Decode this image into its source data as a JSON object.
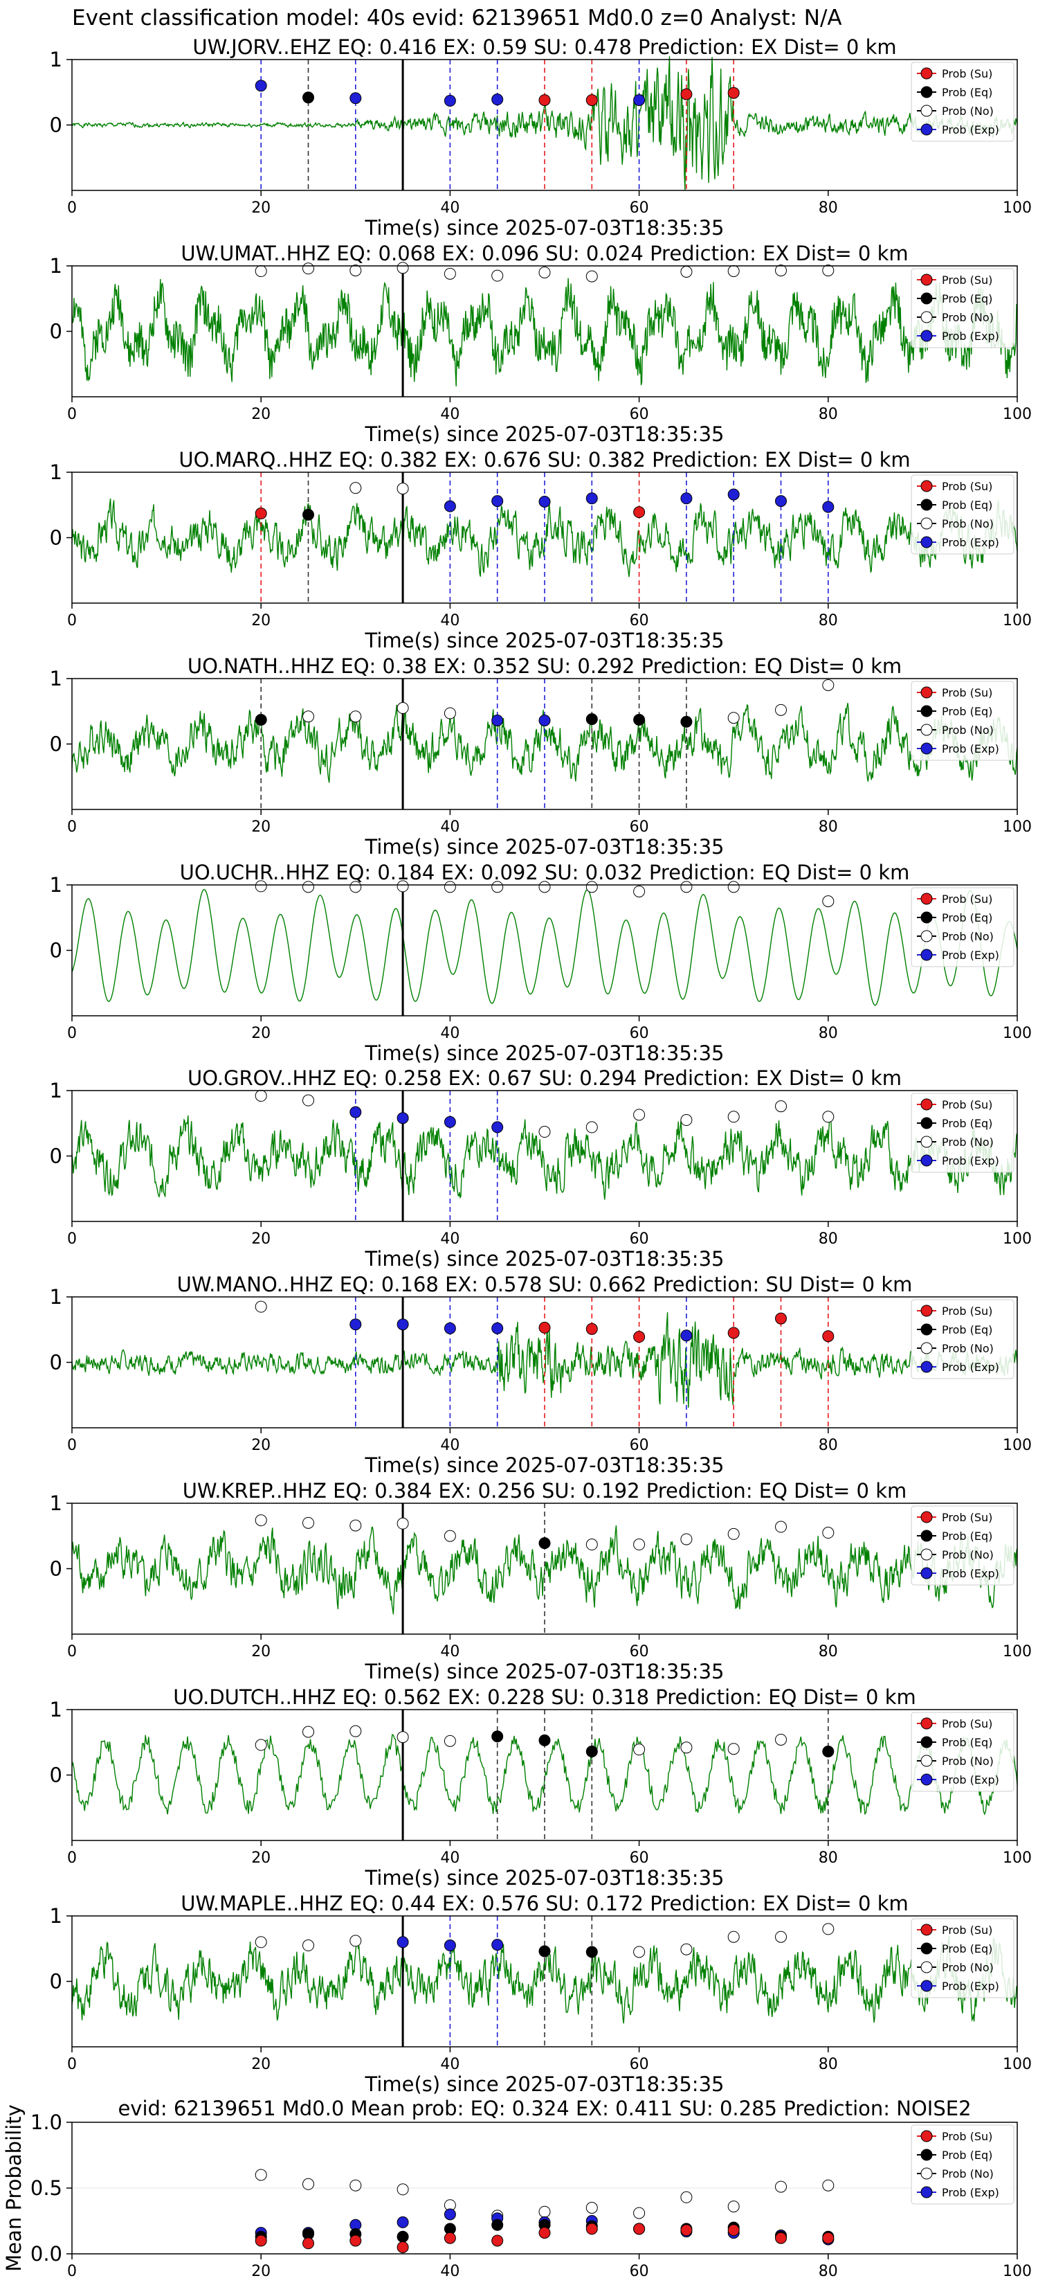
{
  "main_title": "Event classification model: 40s evid: 62139651 Md0.0 z=0 Analyst: N/A",
  "legend_labels": [
    "Prob (Su)",
    "Prob (Eq)",
    "Prob (No)",
    "Prob (Exp)"
  ],
  "colors": {
    "su": "#e41a1c",
    "eq": "#000000",
    "no": "#ffffff",
    "exp": "#1f1fd6",
    "waveform": "#008000",
    "pick": "#000000"
  },
  "chart_data": [
    {
      "type": "line",
      "station": "UW.JORV..EHZ",
      "title": "UW.JORV..EHZ   EQ: 0.416  EX: 0.59  SU: 0.478   Prediction: EX    Dist= 0 km",
      "xlabel": "Time(s) since 2025-07-03T18:35:35",
      "xlim": [
        0,
        100
      ],
      "ylim": [
        -1,
        1
      ],
      "xticks": [
        "0",
        "20",
        "40",
        "60",
        "80",
        "100"
      ],
      "yticks": [
        "1",
        "0"
      ],
      "pick_time": 35,
      "waveform": {
        "style": "noisy-burst",
        "amplitude": 0.65,
        "seed": 1
      },
      "points": [
        {
          "t": 20,
          "p": 0.6,
          "cls": "exp"
        },
        {
          "t": 25,
          "p": 0.42,
          "cls": "eq"
        },
        {
          "t": 30,
          "p": 0.41,
          "cls": "exp"
        },
        {
          "t": 40,
          "p": 0.37,
          "cls": "exp"
        },
        {
          "t": 45,
          "p": 0.39,
          "cls": "exp"
        },
        {
          "t": 50,
          "p": 0.38,
          "cls": "su"
        },
        {
          "t": 55,
          "p": 0.38,
          "cls": "su"
        },
        {
          "t": 60,
          "p": 0.38,
          "cls": "exp"
        },
        {
          "t": 65,
          "p": 0.47,
          "cls": "su"
        },
        {
          "t": 70,
          "p": 0.49,
          "cls": "su"
        }
      ]
    },
    {
      "type": "line",
      "station": "UW.UMAT..HHZ",
      "title": "UW.UMAT..HHZ   EQ: 0.068  EX: 0.096  SU: 0.024   Prediction: EX    Dist= 0 km",
      "xlabel": "Time(s) since 2025-07-03T18:35:35",
      "xlim": [
        0,
        100
      ],
      "ylim": [
        -1,
        1
      ],
      "xticks": [
        "0",
        "20",
        "40",
        "60",
        "80",
        "100"
      ],
      "yticks": [
        "1",
        "0"
      ],
      "pick_time": 35,
      "waveform": {
        "style": "oscillatory",
        "amplitude": 0.6,
        "seed": 2
      },
      "points": [
        {
          "t": 20,
          "p": 0.92,
          "cls": "no"
        },
        {
          "t": 25,
          "p": 0.96,
          "cls": "no"
        },
        {
          "t": 30,
          "p": 0.93,
          "cls": "no"
        },
        {
          "t": 35,
          "p": 0.97,
          "cls": "no"
        },
        {
          "t": 40,
          "p": 0.88,
          "cls": "no"
        },
        {
          "t": 45,
          "p": 0.85,
          "cls": "no"
        },
        {
          "t": 50,
          "p": 0.9,
          "cls": "no"
        },
        {
          "t": 55,
          "p": 0.84,
          "cls": "no"
        },
        {
          "t": 65,
          "p": 0.91,
          "cls": "no"
        },
        {
          "t": 70,
          "p": 0.92,
          "cls": "no"
        },
        {
          "t": 75,
          "p": 0.93,
          "cls": "no"
        },
        {
          "t": 80,
          "p": 0.93,
          "cls": "no"
        }
      ]
    },
    {
      "type": "line",
      "station": "UO.MARQ..HHZ",
      "title": "UO.MARQ..HHZ   EQ: 0.382  EX: 0.676  SU: 0.382   Prediction: EX    Dist= 0 km",
      "xlabel": "Time(s) since 2025-07-03T18:35:35",
      "xlim": [
        0,
        100
      ],
      "ylim": [
        -1,
        1
      ],
      "xticks": [
        "0",
        "20",
        "40",
        "60",
        "80",
        "100"
      ],
      "yticks": [
        "1",
        "0"
      ],
      "pick_time": 35,
      "waveform": {
        "style": "noisy",
        "amplitude": 0.55,
        "seed": 3
      },
      "points": [
        {
          "t": 20,
          "p": 0.37,
          "cls": "su"
        },
        {
          "t": 25,
          "p": 0.35,
          "cls": "eq"
        },
        {
          "t": 30,
          "p": 0.76,
          "cls": "no"
        },
        {
          "t": 35,
          "p": 0.75,
          "cls": "no"
        },
        {
          "t": 40,
          "p": 0.48,
          "cls": "exp"
        },
        {
          "t": 45,
          "p": 0.56,
          "cls": "exp"
        },
        {
          "t": 50,
          "p": 0.55,
          "cls": "exp"
        },
        {
          "t": 55,
          "p": 0.6,
          "cls": "exp"
        },
        {
          "t": 60,
          "p": 0.39,
          "cls": "su"
        },
        {
          "t": 65,
          "p": 0.6,
          "cls": "exp"
        },
        {
          "t": 70,
          "p": 0.66,
          "cls": "exp"
        },
        {
          "t": 75,
          "p": 0.56,
          "cls": "exp"
        },
        {
          "t": 80,
          "p": 0.47,
          "cls": "exp"
        }
      ]
    },
    {
      "type": "line",
      "station": "UO.NATH..HHZ",
      "title": "UO.NATH..HHZ   EQ: 0.38  EX: 0.352  SU: 0.292   Prediction: EQ    Dist= 0 km",
      "xlabel": "Time(s) since 2025-07-03T18:35:35",
      "xlim": [
        0,
        100
      ],
      "ylim": [
        -1,
        1
      ],
      "xticks": [
        "0",
        "20",
        "40",
        "60",
        "80",
        "100"
      ],
      "yticks": [
        "1",
        "0"
      ],
      "pick_time": 35,
      "waveform": {
        "style": "noisy",
        "amplitude": 0.55,
        "seed": 4
      },
      "points": [
        {
          "t": 20,
          "p": 0.37,
          "cls": "eq"
        },
        {
          "t": 25,
          "p": 0.42,
          "cls": "no"
        },
        {
          "t": 30,
          "p": 0.42,
          "cls": "no"
        },
        {
          "t": 35,
          "p": 0.55,
          "cls": "no"
        },
        {
          "t": 40,
          "p": 0.47,
          "cls": "no"
        },
        {
          "t": 45,
          "p": 0.36,
          "cls": "exp"
        },
        {
          "t": 50,
          "p": 0.36,
          "cls": "exp"
        },
        {
          "t": 55,
          "p": 0.38,
          "cls": "eq"
        },
        {
          "t": 60,
          "p": 0.37,
          "cls": "eq"
        },
        {
          "t": 65,
          "p": 0.34,
          "cls": "eq"
        },
        {
          "t": 70,
          "p": 0.4,
          "cls": "no"
        },
        {
          "t": 75,
          "p": 0.52,
          "cls": "no"
        },
        {
          "t": 80,
          "p": 0.9,
          "cls": "no"
        }
      ]
    },
    {
      "type": "line",
      "station": "UO.UCHR..HHZ",
      "title": "UO.UCHR..HHZ   EQ: 0.184  EX: 0.092  SU: 0.032   Prediction: EQ    Dist= 0 km",
      "xlabel": "Time(s) since 2025-07-03T18:35:35",
      "xlim": [
        0,
        100
      ],
      "ylim": [
        -1,
        1
      ],
      "xticks": [
        "0",
        "20",
        "40",
        "60",
        "80",
        "100"
      ],
      "yticks": [
        "1",
        "0"
      ],
      "pick_time": 35,
      "waveform": {
        "style": "smooth",
        "amplitude": 0.7,
        "seed": 5
      },
      "points": [
        {
          "t": 20,
          "p": 0.98,
          "cls": "no"
        },
        {
          "t": 25,
          "p": 0.97,
          "cls": "no"
        },
        {
          "t": 30,
          "p": 0.97,
          "cls": "no"
        },
        {
          "t": 35,
          "p": 0.98,
          "cls": "no"
        },
        {
          "t": 40,
          "p": 0.97,
          "cls": "no"
        },
        {
          "t": 45,
          "p": 0.97,
          "cls": "no"
        },
        {
          "t": 50,
          "p": 0.97,
          "cls": "no"
        },
        {
          "t": 55,
          "p": 0.97,
          "cls": "no"
        },
        {
          "t": 60,
          "p": 0.9,
          "cls": "no"
        },
        {
          "t": 65,
          "p": 0.97,
          "cls": "no"
        },
        {
          "t": 70,
          "p": 0.97,
          "cls": "no"
        },
        {
          "t": 80,
          "p": 0.75,
          "cls": "no"
        }
      ]
    },
    {
      "type": "line",
      "station": "UO.GROV..HHZ",
      "title": "UO.GROV..HHZ   EQ: 0.258  EX: 0.67  SU: 0.294   Prediction: EX    Dist= 0 km",
      "xlabel": "Time(s) since 2025-07-03T18:35:35",
      "xlim": [
        0,
        100
      ],
      "ylim": [
        -1,
        1
      ],
      "xticks": [
        "0",
        "20",
        "40",
        "60",
        "80",
        "100"
      ],
      "yticks": [
        "1",
        "0"
      ],
      "pick_time": 35,
      "waveform": {
        "style": "noisy",
        "amplitude": 0.6,
        "seed": 6
      },
      "points": [
        {
          "t": 20,
          "p": 0.92,
          "cls": "no"
        },
        {
          "t": 25,
          "p": 0.85,
          "cls": "no"
        },
        {
          "t": 30,
          "p": 0.67,
          "cls": "exp"
        },
        {
          "t": 35,
          "p": 0.58,
          "cls": "exp"
        },
        {
          "t": 40,
          "p": 0.52,
          "cls": "exp"
        },
        {
          "t": 45,
          "p": 0.44,
          "cls": "exp"
        },
        {
          "t": 50,
          "p": 0.37,
          "cls": "no"
        },
        {
          "t": 55,
          "p": 0.44,
          "cls": "no"
        },
        {
          "t": 60,
          "p": 0.63,
          "cls": "no"
        },
        {
          "t": 65,
          "p": 0.55,
          "cls": "no"
        },
        {
          "t": 70,
          "p": 0.6,
          "cls": "no"
        },
        {
          "t": 75,
          "p": 0.76,
          "cls": "no"
        },
        {
          "t": 80,
          "p": 0.6,
          "cls": "no"
        }
      ]
    },
    {
      "type": "line",
      "station": "UW.MANO..HHZ",
      "title": "UW.MANO..HHZ   EQ: 0.168  EX: 0.578  SU: 0.662   Prediction: SU    Dist= 0 km",
      "xlabel": "Time(s) since 2025-07-03T18:35:35",
      "xlim": [
        0,
        100
      ],
      "ylim": [
        -1,
        1
      ],
      "xticks": [
        "0",
        "20",
        "40",
        "60",
        "80",
        "100"
      ],
      "yticks": [
        "1",
        "0"
      ],
      "pick_time": 35,
      "waveform": {
        "style": "noisy-burst-late",
        "amplitude": 0.55,
        "seed": 7
      },
      "points": [
        {
          "t": 20,
          "p": 0.85,
          "cls": "no"
        },
        {
          "t": 30,
          "p": 0.58,
          "cls": "exp"
        },
        {
          "t": 35,
          "p": 0.58,
          "cls": "exp"
        },
        {
          "t": 40,
          "p": 0.52,
          "cls": "exp"
        },
        {
          "t": 45,
          "p": 0.52,
          "cls": "exp"
        },
        {
          "t": 50,
          "p": 0.53,
          "cls": "su"
        },
        {
          "t": 55,
          "p": 0.51,
          "cls": "su"
        },
        {
          "t": 60,
          "p": 0.39,
          "cls": "su"
        },
        {
          "t": 65,
          "p": 0.41,
          "cls": "exp"
        },
        {
          "t": 70,
          "p": 0.45,
          "cls": "su"
        },
        {
          "t": 75,
          "p": 0.67,
          "cls": "su"
        },
        {
          "t": 80,
          "p": 0.4,
          "cls": "su"
        }
      ]
    },
    {
      "type": "line",
      "station": "UW.KREP..HHZ",
      "title": "UW.KREP..HHZ   EQ: 0.384  EX: 0.256  SU: 0.192   Prediction: EQ    Dist= 0 km",
      "xlabel": "Time(s) since 2025-07-03T18:35:35",
      "xlim": [
        0,
        100
      ],
      "ylim": [
        -1,
        1
      ],
      "xticks": [
        "0",
        "20",
        "40",
        "60",
        "80",
        "100"
      ],
      "yticks": [
        "1",
        "0"
      ],
      "pick_time": 35,
      "waveform": {
        "style": "noisy",
        "amplitude": 0.6,
        "seed": 8
      },
      "points": [
        {
          "t": 20,
          "p": 0.74,
          "cls": "no"
        },
        {
          "t": 25,
          "p": 0.7,
          "cls": "no"
        },
        {
          "t": 30,
          "p": 0.66,
          "cls": "no"
        },
        {
          "t": 35,
          "p": 0.69,
          "cls": "no"
        },
        {
          "t": 40,
          "p": 0.5,
          "cls": "no"
        },
        {
          "t": 50,
          "p": 0.39,
          "cls": "eq"
        },
        {
          "t": 55,
          "p": 0.37,
          "cls": "no"
        },
        {
          "t": 60,
          "p": 0.37,
          "cls": "no"
        },
        {
          "t": 65,
          "p": 0.45,
          "cls": "no"
        },
        {
          "t": 70,
          "p": 0.53,
          "cls": "no"
        },
        {
          "t": 75,
          "p": 0.64,
          "cls": "no"
        },
        {
          "t": 80,
          "p": 0.55,
          "cls": "no"
        }
      ]
    },
    {
      "type": "line",
      "station": "UO.DUTCH..HHZ",
      "title": "UO.DUTCH..HHZ   EQ: 0.562  EX: 0.228  SU: 0.318   Prediction: EQ    Dist= 0 km",
      "xlabel": "Time(s) since 2025-07-03T18:35:35",
      "xlim": [
        0,
        100
      ],
      "ylim": [
        -1,
        1
      ],
      "xticks": [
        "0",
        "20",
        "40",
        "60",
        "80",
        "100"
      ],
      "yticks": [
        "1",
        "0"
      ],
      "pick_time": 35,
      "waveform": {
        "style": "smooth-noisy",
        "amplitude": 0.6,
        "seed": 9
      },
      "points": [
        {
          "t": 20,
          "p": 0.46,
          "cls": "no"
        },
        {
          "t": 25,
          "p": 0.66,
          "cls": "no"
        },
        {
          "t": 30,
          "p": 0.67,
          "cls": "no"
        },
        {
          "t": 35,
          "p": 0.58,
          "cls": "no"
        },
        {
          "t": 40,
          "p": 0.52,
          "cls": "no"
        },
        {
          "t": 45,
          "p": 0.59,
          "cls": "eq"
        },
        {
          "t": 50,
          "p": 0.53,
          "cls": "eq"
        },
        {
          "t": 55,
          "p": 0.36,
          "cls": "eq"
        },
        {
          "t": 60,
          "p": 0.39,
          "cls": "no"
        },
        {
          "t": 65,
          "p": 0.42,
          "cls": "no"
        },
        {
          "t": 70,
          "p": 0.4,
          "cls": "no"
        },
        {
          "t": 75,
          "p": 0.54,
          "cls": "no"
        },
        {
          "t": 80,
          "p": 0.36,
          "cls": "eq"
        }
      ]
    },
    {
      "type": "line",
      "station": "UW.MAPLE..HHZ",
      "title": "UW.MAPLE..HHZ   EQ: 0.44  EX: 0.576  SU: 0.172   Prediction: EX    Dist= 0 km",
      "xlabel": "Time(s) since 2025-07-03T18:35:35",
      "xlim": [
        0,
        100
      ],
      "ylim": [
        -1,
        1
      ],
      "xticks": [
        "0",
        "20",
        "40",
        "60",
        "80",
        "100"
      ],
      "yticks": [
        "1",
        "0"
      ],
      "pick_time": 35,
      "waveform": {
        "style": "noisy",
        "amplitude": 0.62,
        "seed": 10
      },
      "points": [
        {
          "t": 20,
          "p": 0.6,
          "cls": "no"
        },
        {
          "t": 25,
          "p": 0.55,
          "cls": "no"
        },
        {
          "t": 30,
          "p": 0.62,
          "cls": "no"
        },
        {
          "t": 35,
          "p": 0.6,
          "cls": "exp"
        },
        {
          "t": 40,
          "p": 0.55,
          "cls": "exp"
        },
        {
          "t": 45,
          "p": 0.56,
          "cls": "exp"
        },
        {
          "t": 50,
          "p": 0.46,
          "cls": "eq"
        },
        {
          "t": 55,
          "p": 0.45,
          "cls": "eq"
        },
        {
          "t": 60,
          "p": 0.45,
          "cls": "no"
        },
        {
          "t": 65,
          "p": 0.49,
          "cls": "no"
        },
        {
          "t": 70,
          "p": 0.68,
          "cls": "no"
        },
        {
          "t": 75,
          "p": 0.68,
          "cls": "no"
        },
        {
          "t": 80,
          "p": 0.8,
          "cls": "no"
        }
      ]
    },
    {
      "type": "scatter",
      "station": "summary",
      "title": "evid: 62139651  Md0.0   Mean prob:   EQ: 0.324  EX: 0.411  SU: 0.285   Prediction: NOISE2",
      "xlabel": "",
      "ylabel": "Mean Probability",
      "xlim": [
        0,
        100
      ],
      "ylim": [
        0,
        1
      ],
      "xticks": [
        "0",
        "20",
        "40",
        "60",
        "80",
        "100"
      ],
      "yticks": [
        "1.0",
        "0.5",
        "0.0"
      ],
      "x": [
        20,
        25,
        30,
        35,
        40,
        45,
        50,
        55,
        60,
        65,
        70,
        75,
        80
      ],
      "series": [
        {
          "name": "Prob (No)",
          "cls": "no",
          "values": [
            0.6,
            0.53,
            0.52,
            0.49,
            0.37,
            0.29,
            0.32,
            0.35,
            0.31,
            0.43,
            0.36,
            0.51,
            0.52
          ]
        },
        {
          "name": "Prob (Exp)",
          "cls": "exp",
          "values": [
            0.16,
            0.16,
            0.22,
            0.24,
            0.3,
            0.27,
            0.24,
            0.25,
            0.19,
            0.17,
            0.16,
            0.14,
            0.11
          ]
        },
        {
          "name": "Prob (Eq)",
          "cls": "eq",
          "values": [
            0.13,
            0.15,
            0.15,
            0.13,
            0.19,
            0.22,
            0.22,
            0.21,
            0.19,
            0.19,
            0.2,
            0.13,
            0.13
          ]
        },
        {
          "name": "Prob (Su)",
          "cls": "su",
          "values": [
            0.1,
            0.08,
            0.1,
            0.05,
            0.12,
            0.1,
            0.16,
            0.19,
            0.19,
            0.18,
            0.18,
            0.12,
            0.12
          ]
        }
      ]
    }
  ]
}
